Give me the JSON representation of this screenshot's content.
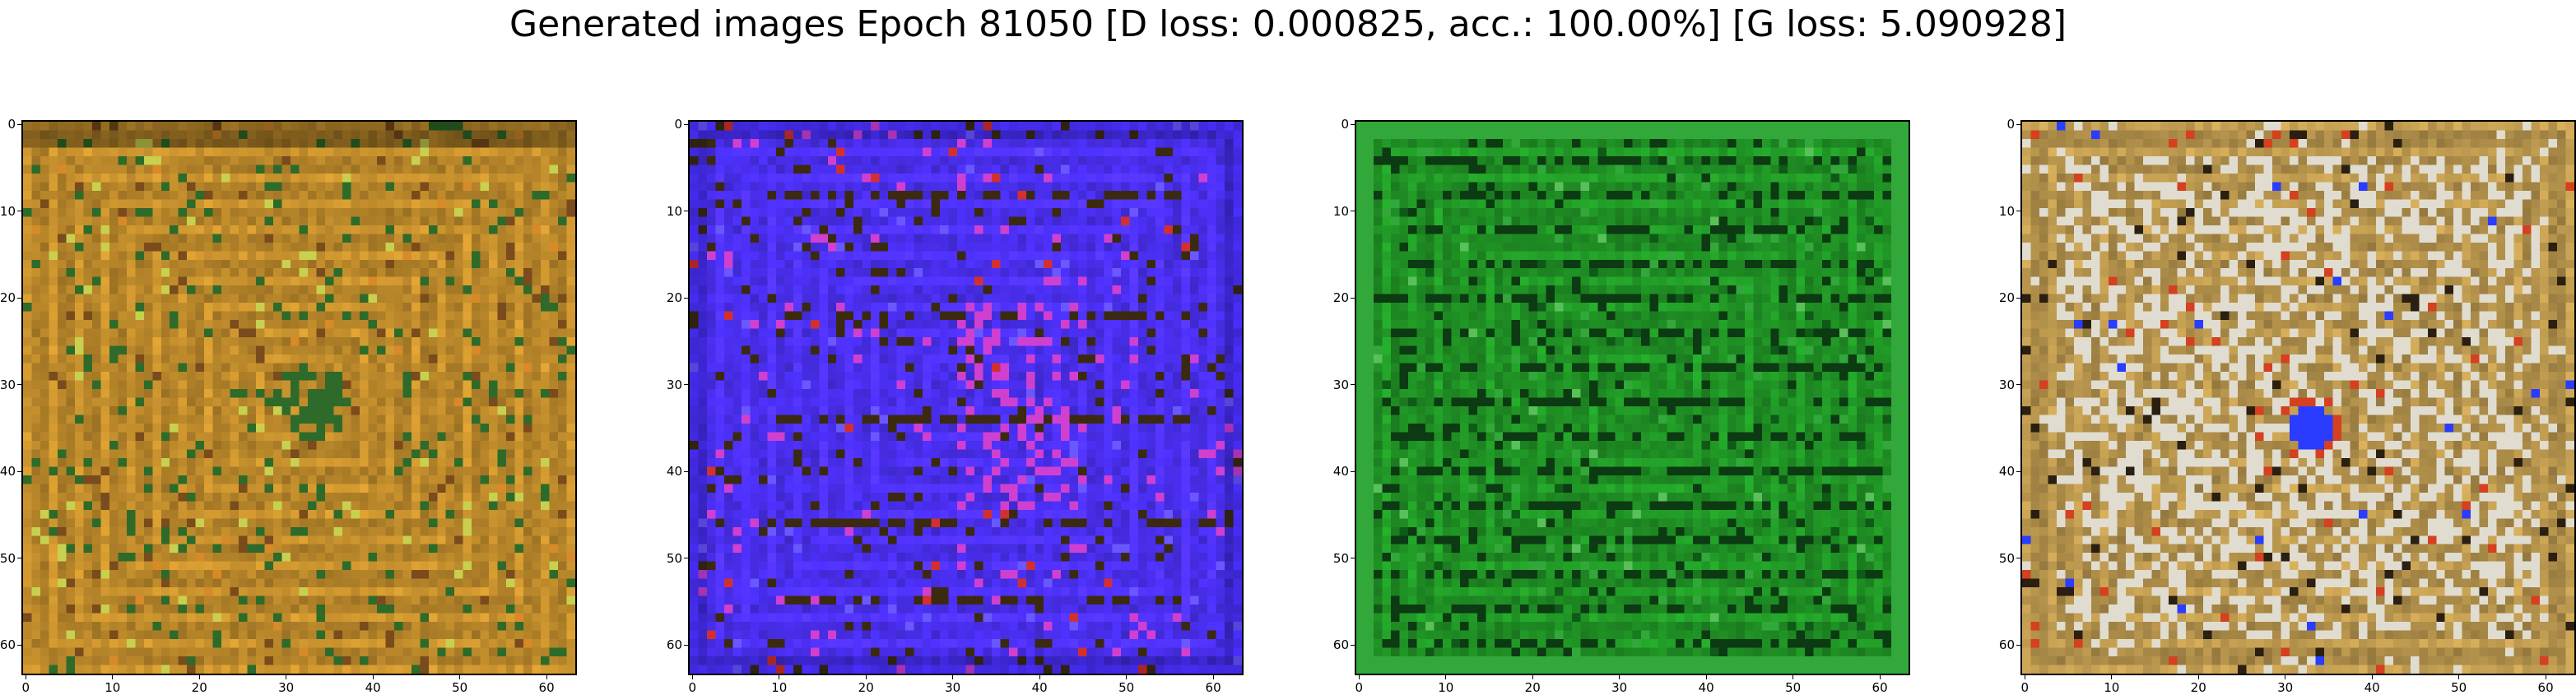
{
  "figure": {
    "title": "Generated images Epoch 81050 [D loss: 0.000825, acc.: 100.00%] [G loss: 5.090928]"
  },
  "axes": {
    "x_tick_labels": [
      "0",
      "10",
      "20",
      "30",
      "40",
      "50",
      "60"
    ],
    "y_tick_labels": [
      "0",
      "10",
      "20",
      "30",
      "40",
      "50",
      "60"
    ],
    "image_size": 64
  },
  "panels": [
    {
      "id": "sample-1",
      "dominant_color": "#b8862a",
      "palette": "ochre",
      "accent_colors": [
        "#2e6b2a",
        "#7a4b1c",
        "#c8d050",
        "#d88a28"
      ]
    },
    {
      "id": "sample-2",
      "dominant_color": "#4a2ff0",
      "palette": "blue",
      "accent_colors": [
        "#3b2a10",
        "#d040d0",
        "#6a58ff",
        "#d23030"
      ]
    },
    {
      "id": "sample-3",
      "dominant_color": "#1f8f24",
      "palette": "green",
      "accent_colors": [
        "#0c3a12",
        "#33a83a",
        "#0f5a18",
        "#5ac05a"
      ]
    },
    {
      "id": "sample-4",
      "dominant_color": "#b08f4a",
      "palette": "pale",
      "accent_colors": [
        "#e0dccf",
        "#2a1f10",
        "#d44020",
        "#2a3cff"
      ]
    }
  ]
}
